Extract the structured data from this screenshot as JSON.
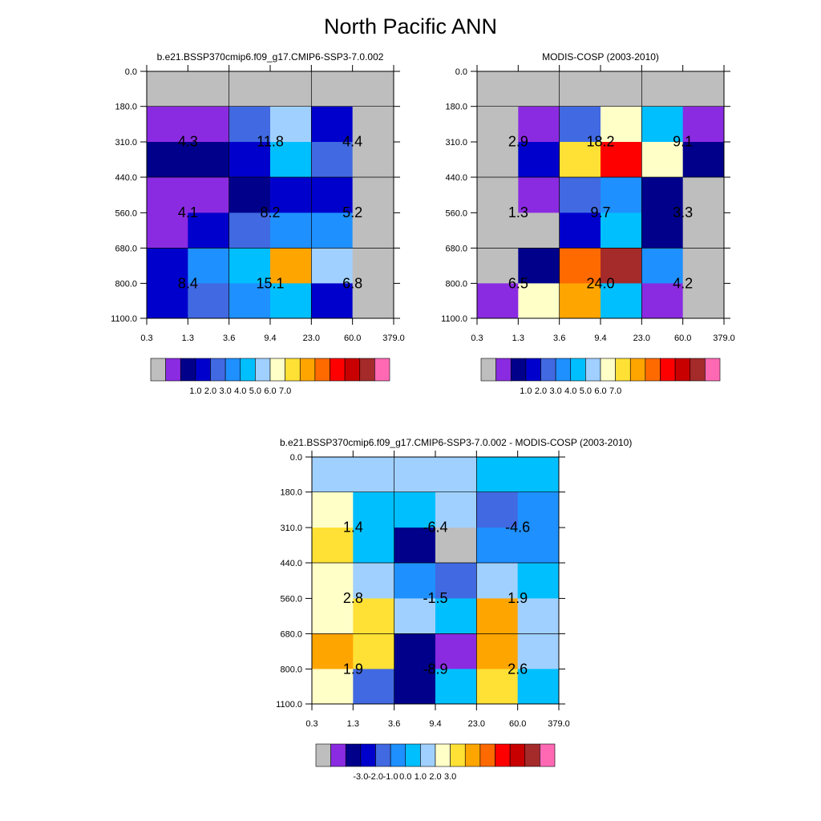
{
  "title": "North Pacific ANN",
  "chart_data": [
    {
      "type": "heatmap",
      "subtitle": "b.e21.BSSP370cmip6.f09_g17.CMIP6-SSP3-7.0.002",
      "x_ticks": [
        "0.3",
        "1.3",
        "3.6",
        "9.4",
        "23.0",
        "60.0",
        "379.0"
      ],
      "y_ticks": [
        "0.0",
        "180.0",
        "310.0",
        "440.0",
        "560.0",
        "680.0",
        "800.0",
        "1100.0"
      ],
      "cell_colors": [
        [
          0,
          0,
          0,
          0,
          0,
          0
        ],
        [
          1,
          1,
          4,
          7,
          3,
          0
        ],
        [
          2,
          2,
          3,
          6,
          4,
          0
        ],
        [
          1,
          1,
          2,
          3,
          3,
          0
        ],
        [
          1,
          3,
          4,
          5,
          5,
          0
        ],
        [
          3,
          5,
          6,
          10,
          7,
          0
        ],
        [
          3,
          4,
          5,
          6,
          3,
          0
        ]
      ],
      "values": [
        [
          "4.3",
          "11.8",
          "4.4"
        ],
        [
          "4.1",
          "8.2",
          "5.2"
        ],
        [
          "8.4",
          "15.1",
          "6.8"
        ]
      ],
      "colorbar_labels": [
        "1.0",
        "2.0",
        "3.0",
        "4.0",
        "5.0",
        "6.0",
        "7.0"
      ]
    },
    {
      "type": "heatmap",
      "subtitle": "MODIS-COSP (2003-2010)",
      "x_ticks": [
        "0.3",
        "1.3",
        "3.6",
        "9.4",
        "23.0",
        "60.0",
        "379.0"
      ],
      "y_ticks": [
        "0.0",
        "180.0",
        "310.0",
        "440.0",
        "560.0",
        "680.0",
        "800.0",
        "1100.0"
      ],
      "cell_colors": [
        [
          0,
          0,
          0,
          0,
          0,
          0
        ],
        [
          0,
          1,
          4,
          8,
          6,
          1
        ],
        [
          0,
          3,
          9,
          12,
          8,
          2
        ],
        [
          0,
          1,
          4,
          5,
          2,
          0
        ],
        [
          0,
          0,
          3,
          6,
          2,
          0
        ],
        [
          0,
          2,
          11,
          14,
          5,
          0
        ],
        [
          1,
          8,
          10,
          6,
          1,
          0
        ]
      ],
      "values": [
        [
          "2.9",
          "18.2",
          "9.1"
        ],
        [
          "1.3",
          "9.7",
          "3.3"
        ],
        [
          "6.5",
          "24.0",
          "4.2"
        ]
      ],
      "colorbar_labels": [
        "1.0",
        "2.0",
        "3.0",
        "4.0",
        "5.0",
        "6.0",
        "7.0"
      ]
    },
    {
      "type": "heatmap",
      "subtitle": "b.e21.BSSP370cmip6.f09_g17.CMIP6-SSP3-7.0.002 - MODIS-COSP (2003-2010)",
      "x_ticks": [
        "0.3",
        "1.3",
        "3.6",
        "9.4",
        "23.0",
        "60.0",
        "379.0"
      ],
      "y_ticks": [
        "0.0",
        "180.0",
        "310.0",
        "440.0",
        "560.0",
        "680.0",
        "800.0",
        "1100.0"
      ],
      "cell_colors": [
        [
          7,
          7,
          7,
          7,
          6,
          6
        ],
        [
          8,
          6,
          6,
          7,
          4,
          5
        ],
        [
          9,
          6,
          2,
          0,
          5,
          5
        ],
        [
          8,
          7,
          5,
          4,
          7,
          6
        ],
        [
          8,
          9,
          7,
          6,
          10,
          7
        ],
        [
          10,
          9,
          2,
          1,
          10,
          7
        ],
        [
          8,
          4,
          2,
          6,
          9,
          6
        ]
      ],
      "values": [
        [
          "1.4",
          "-6.4",
          "-4.6"
        ],
        [
          "2.8",
          "-1.5",
          "1.9"
        ],
        [
          "1.9",
          "-8.9",
          "2.6"
        ]
      ],
      "colorbar_labels": [
        "-3.0",
        "-2.0",
        "-1.0",
        "0.0",
        "1.0",
        "2.0",
        "3.0"
      ]
    }
  ],
  "palette": [
    "#bebebe",
    "#8a2be2",
    "#00008b",
    "#0000cd",
    "#4169e1",
    "#1e90ff",
    "#00bfff",
    "#a0d0ff",
    "#ffffc8",
    "#ffe135",
    "#ffa500",
    "#ff6a00",
    "#ff0000",
    "#c80000",
    "#a52a2a",
    "#ff69b4"
  ]
}
